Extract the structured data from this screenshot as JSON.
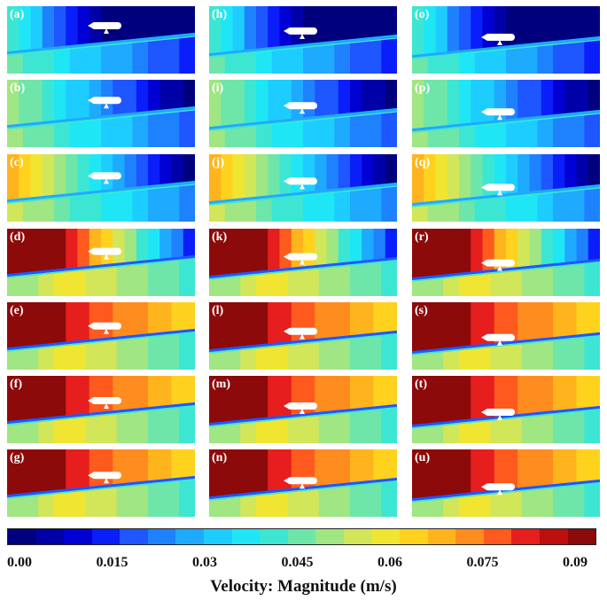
{
  "panels": [
    {
      "label": "(a)",
      "stage": 0
    },
    {
      "label": "(b)",
      "stage": 1
    },
    {
      "label": "(c)",
      "stage": 2
    },
    {
      "label": "(d)",
      "stage": 3
    },
    {
      "label": "(e)",
      "stage": 4
    },
    {
      "label": "(f)",
      "stage": 5
    },
    {
      "label": "(g)",
      "stage": 6
    },
    {
      "label": "(h)",
      "stage": 0
    },
    {
      "label": "(i)",
      "stage": 1
    },
    {
      "label": "(j)",
      "stage": 2
    },
    {
      "label": "(k)",
      "stage": 3
    },
    {
      "label": "(l)",
      "stage": 4
    },
    {
      "label": "(m)",
      "stage": 5
    },
    {
      "label": "(n)",
      "stage": 6
    },
    {
      "label": "(o)",
      "stage": 0
    },
    {
      "label": "(p)",
      "stage": 1
    },
    {
      "label": "(q)",
      "stage": 2
    },
    {
      "label": "(r)",
      "stage": 3
    },
    {
      "label": "(s)",
      "stage": 4
    },
    {
      "label": "(t)",
      "stage": 5
    },
    {
      "label": "(u)",
      "stage": 6
    }
  ],
  "colorbar": {
    "title": "Velocity: Magnitude (m/s)",
    "ticks": [
      "0.00",
      "0.015",
      "0.03",
      "0.045",
      "0.06",
      "0.075",
      "0.09"
    ],
    "min": 0,
    "max": 0.09,
    "colors": [
      "#00007f",
      "#0000a8",
      "#0000d4",
      "#0a1efa",
      "#1e56ff",
      "#1e82ff",
      "#1eaaff",
      "#1ecdff",
      "#1ee6f5",
      "#3ce6d2",
      "#6ee6aa",
      "#a0e682",
      "#d2e65a",
      "#f0e632",
      "#ffd21e",
      "#ffb41e",
      "#ff8c1e",
      "#ff5a1e",
      "#e61e1e",
      "#be0f0f",
      "#8c0a0a"
    ]
  }
}
